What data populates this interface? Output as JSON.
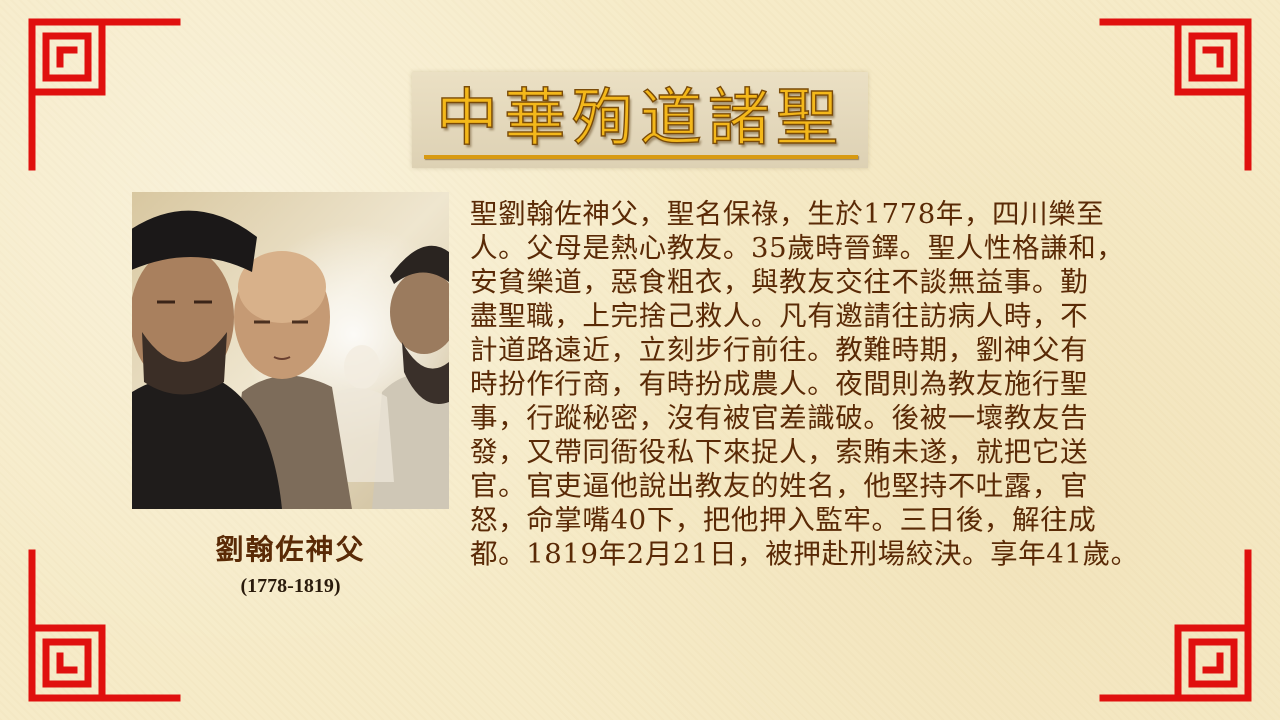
{
  "title": "中華殉道諸聖",
  "caption": {
    "name": "劉翰佐神父",
    "dates": "(1778-1819)"
  },
  "bio_lines": [
    "聖劉翰佐神父，聖名保祿，生於1778年，四川樂至",
    "人。父母是熱心教友。35歲時晉鐸。聖人性格謙和，",
    "安貧樂道，惡食粗衣，與教友交往不談無益事。勤",
    "盡聖職，上完捨己救人。凡有邀請往訪病人時，不",
    "計道路遠近，立刻步行前往。教難時期，劉神父有",
    "時扮作行商，有時扮成農人。夜間則為教友施行聖",
    "事，行蹤秘密，沒有被官差識破。後被一壞教友告",
    "發，又帶同衙役私下來捉人，索賄未遂，就把它送",
    "官。官吏逼他說出教友的姓名，他堅持不吐露，官",
    "怒，命掌嘴40下，把他押入監牢。三日後，解往成",
    "都。1819年2月21日，被押赴刑場絞決。享年41歲。"
  ],
  "colors": {
    "border_red": "#e0100e",
    "title_gold": "#f4b81a",
    "text_brown": "#5a2a06"
  }
}
